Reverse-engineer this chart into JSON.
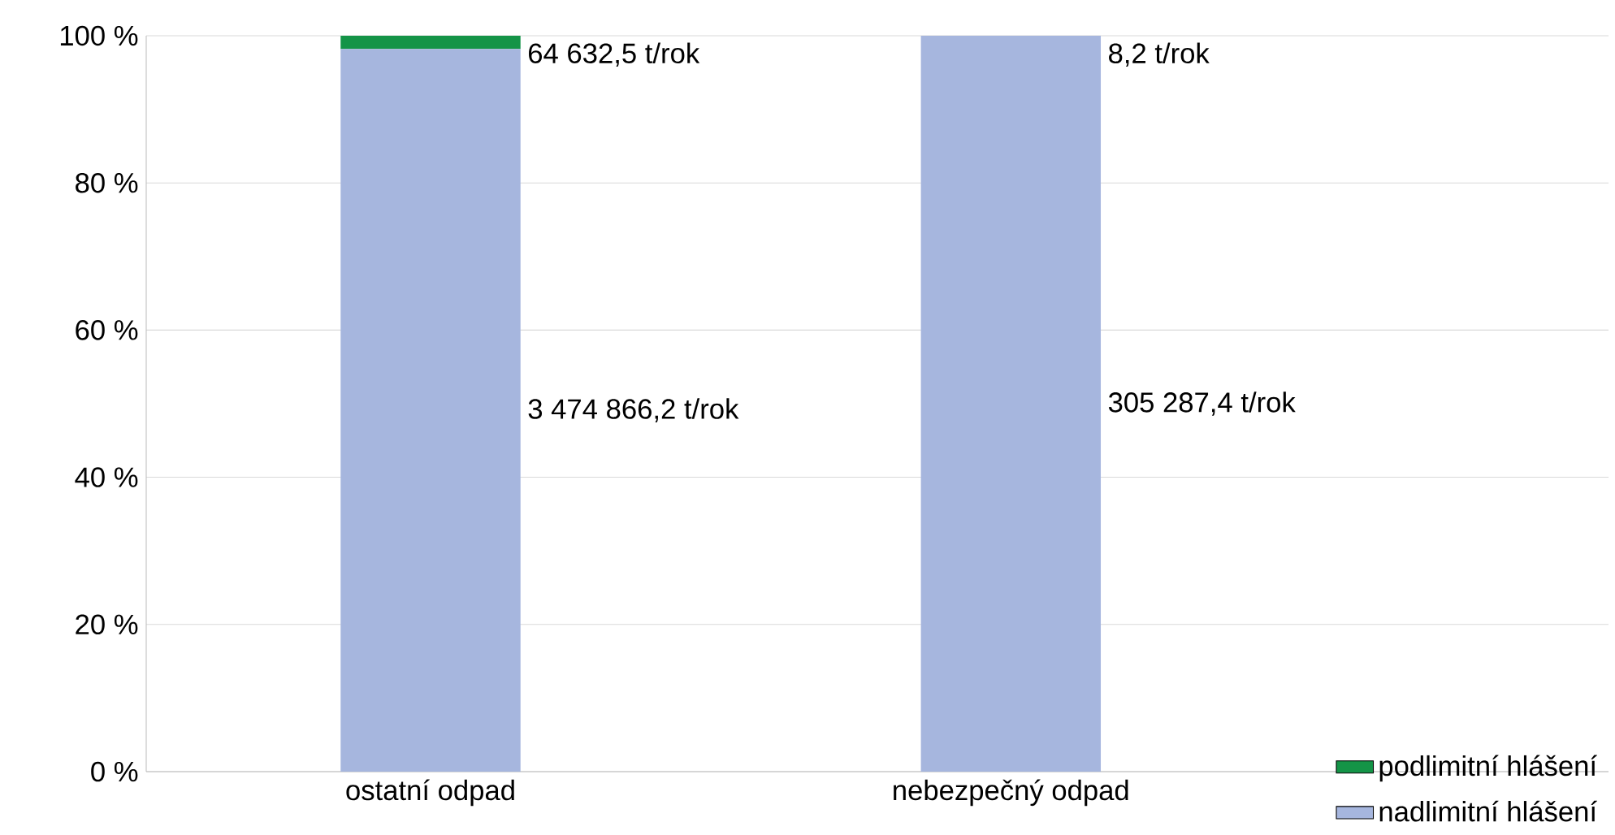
{
  "chart_data": {
    "type": "bar",
    "stacked": true,
    "categories": [
      "ostatní odpad",
      "nebezpečný odpad"
    ],
    "series": [
      {
        "name": "nadlimitní hlášení",
        "color": "#a6b6de",
        "values": [
          98.2,
          100
        ]
      },
      {
        "name": "podlimitní hlášení",
        "color": "#149447",
        "values": [
          1.8,
          0
        ]
      }
    ],
    "annotations": [
      "64 632,5 t/rok",
      "3 474 866,2 t/rok",
      "8,2 t/rok",
      "305 287,4 t/rok"
    ],
    "ylim": [
      0,
      100
    ],
    "yticks": [
      {
        "value": 0,
        "label": "0 %"
      },
      {
        "value": 20,
        "label": "20 %"
      },
      {
        "value": 40,
        "label": "40 %"
      },
      {
        "value": 60,
        "label": "60 %"
      },
      {
        "value": 80,
        "label": "80 %"
      },
      {
        "value": 100,
        "label": "100 %"
      }
    ],
    "grid": "y",
    "legend": "bottom right"
  }
}
